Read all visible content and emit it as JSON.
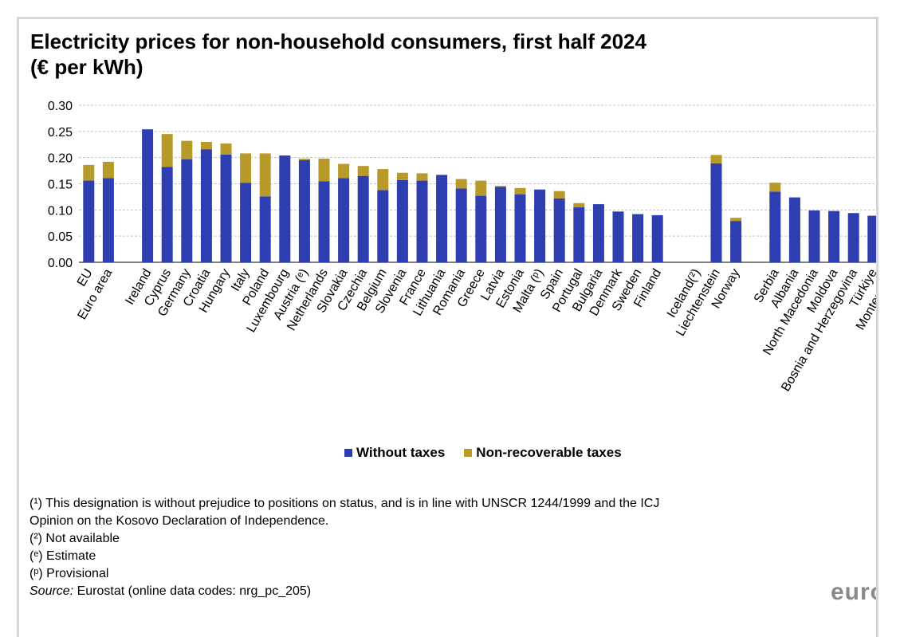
{
  "chart_data": {
    "type": "bar",
    "stacked": true,
    "title_line1": "Electricity prices for non-household consumers, first half 2024",
    "title_line2": "(€ per kWh)",
    "ylim": [
      0,
      0.3
    ],
    "yticks": [
      "0.00",
      "0.05",
      "0.10",
      "0.15",
      "0.20",
      "0.25",
      "0.30"
    ],
    "grid": true,
    "legend_position": "bottom",
    "categories": [
      "EU",
      "Euro area",
      "",
      "Ireland",
      "Cyprus",
      "Germany",
      "Croatia",
      "Hungary",
      "Italy",
      "Poland",
      "Luxembourg",
      "Austria (ᵉ)",
      "Netherlands",
      "Slovakia",
      "Czechia",
      "Belgium",
      "Slovenia",
      "France",
      "Lithuania",
      "Romania",
      "Greece",
      "Latvia",
      "Estonia",
      "Malta (ᵖ)",
      "Spain",
      "Portugal",
      "Bulgaria",
      "Denmark",
      "Sweden",
      "Finland",
      "",
      "Iceland(²)",
      "Liechtenstein",
      "Norway",
      "",
      "Serbia",
      "Albania",
      "North Macedonia",
      "Moldova",
      "Bosnia and Herzegovina",
      "Türkiye",
      "Montenegro"
    ],
    "series": [
      {
        "name": "Without taxes",
        "color": "#2e3eb0",
        "values": [
          0.156,
          0.161,
          null,
          0.254,
          0.182,
          0.197,
          0.216,
          0.206,
          0.152,
          0.126,
          0.204,
          0.195,
          0.155,
          0.161,
          0.165,
          0.138,
          0.157,
          0.156,
          0.167,
          0.141,
          0.127,
          0.144,
          0.13,
          0.139,
          0.122,
          0.105,
          0.111,
          0.097,
          0.092,
          0.09,
          null,
          null,
          0.189,
          0.079,
          null,
          0.135,
          0.124,
          0.099,
          0.098,
          0.094,
          0.089,
          null
        ]
      },
      {
        "name": "Non-recoverable taxes",
        "color": "#b89a2a",
        "values": [
          0.03,
          0.031,
          null,
          0.0,
          0.063,
          0.035,
          0.014,
          0.021,
          0.056,
          0.082,
          0.0,
          0.003,
          0.043,
          0.027,
          0.019,
          0.04,
          0.014,
          0.014,
          0.0,
          0.018,
          0.029,
          0.002,
          0.012,
          0.0,
          0.014,
          0.008,
          0.0,
          0.0,
          0.0,
          0.0,
          null,
          null,
          0.016,
          0.006,
          null,
          0.017,
          0.0,
          0.0,
          0.0,
          0.0,
          0.0,
          null
        ]
      }
    ]
  },
  "footnotes": [
    "(¹) This designation is without prejudice to positions on status, and is in line with UNSCR 1244/1999 and the ICJ",
    "Opinion on the Kosovo Declaration of Independence.",
    "(²) Not available",
    "(ᵉ) Estimate",
    "(ᵖ) Provisional"
  ],
  "source": {
    "label": "Source:",
    "text": " Eurostat (online data codes: nrg_pc_205)"
  },
  "logo_text": "euro"
}
